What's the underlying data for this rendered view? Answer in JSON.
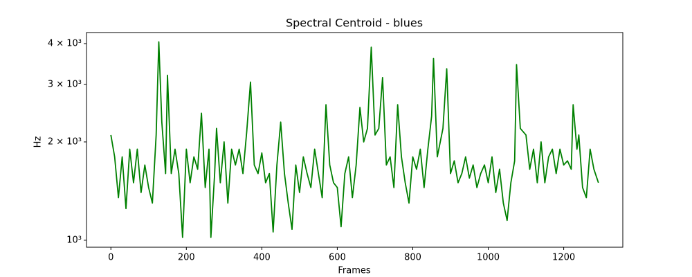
{
  "chart_data": {
    "type": "line",
    "title": "Spectral Centroid - blues",
    "xlabel": "Frames",
    "ylabel": "Hz",
    "yscale": "log",
    "color": "#008000",
    "x": [
      0,
      10,
      20,
      30,
      40,
      50,
      60,
      70,
      80,
      90,
      100,
      110,
      120,
      127,
      135,
      145,
      150,
      160,
      170,
      180,
      190,
      200,
      210,
      220,
      230,
      240,
      250,
      260,
      265,
      275,
      280,
      290,
      300,
      310,
      320,
      330,
      340,
      350,
      360,
      370,
      380,
      390,
      400,
      410,
      420,
      430,
      440,
      450,
      460,
      470,
      480,
      490,
      500,
      510,
      520,
      530,
      540,
      550,
      560,
      570,
      580,
      590,
      600,
      610,
      620,
      630,
      640,
      650,
      660,
      670,
      680,
      690,
      700,
      710,
      720,
      730,
      740,
      750,
      760,
      770,
      780,
      790,
      800,
      810,
      820,
      830,
      840,
      850,
      855,
      865,
      880,
      890,
      900,
      910,
      920,
      930,
      940,
      950,
      960,
      970,
      980,
      990,
      1000,
      1010,
      1020,
      1030,
      1040,
      1050,
      1060,
      1070,
      1075,
      1085,
      1100,
      1110,
      1120,
      1130,
      1140,
      1150,
      1160,
      1170,
      1180,
      1190,
      1200,
      1210,
      1220,
      1225,
      1235,
      1240,
      1250,
      1260,
      1270,
      1280,
      1292
    ],
    "values": [
      2100,
      1800,
      1350,
      1800,
      1250,
      1900,
      1500,
      1900,
      1400,
      1700,
      1450,
      1300,
      2100,
      4050,
      2300,
      1600,
      3200,
      1600,
      1900,
      1600,
      1020,
      1900,
      1500,
      1800,
      1650,
      2450,
      1450,
      1900,
      1020,
      1600,
      2200,
      1500,
      2000,
      1300,
      1900,
      1700,
      1900,
      1600,
      2150,
      3050,
      1700,
      1600,
      1850,
      1500,
      1600,
      1060,
      1700,
      2300,
      1600,
      1300,
      1080,
      1700,
      1400,
      1800,
      1600,
      1450,
      1900,
      1600,
      1350,
      2600,
      1700,
      1500,
      1450,
      1100,
      1600,
      1800,
      1350,
      1700,
      2550,
      2000,
      2200,
      3900,
      2100,
      2200,
      3150,
      1700,
      1800,
      1450,
      2600,
      1800,
      1500,
      1300,
      1800,
      1650,
      1900,
      1450,
      1900,
      2400,
      3600,
      1800,
      2200,
      3350,
      1600,
      1750,
      1500,
      1600,
      1800,
      1550,
      1700,
      1450,
      1600,
      1700,
      1500,
      1800,
      1400,
      1650,
      1300,
      1150,
      1500,
      1750,
      3450,
      2200,
      2100,
      1650,
      1900,
      1500,
      2000,
      1500,
      1800,
      1900,
      1600,
      1900,
      1700,
      1750,
      1650,
      2600,
      1900,
      2100,
      1450,
      1350,
      1900,
      1650,
      1500
    ],
    "xlim": [
      -64.6,
      1356.6
    ],
    "xticks": [
      0,
      200,
      400,
      600,
      800,
      1000,
      1200
    ],
    "ylim": [
      952,
      4324
    ],
    "yticks": [
      {
        "value": 1000,
        "label": "10³"
      },
      {
        "value": 2000,
        "label": "2 × 10³"
      },
      {
        "value": 3000,
        "label": "3 × 10³"
      },
      {
        "value": 4000,
        "label": "4 × 10³"
      }
    ]
  }
}
